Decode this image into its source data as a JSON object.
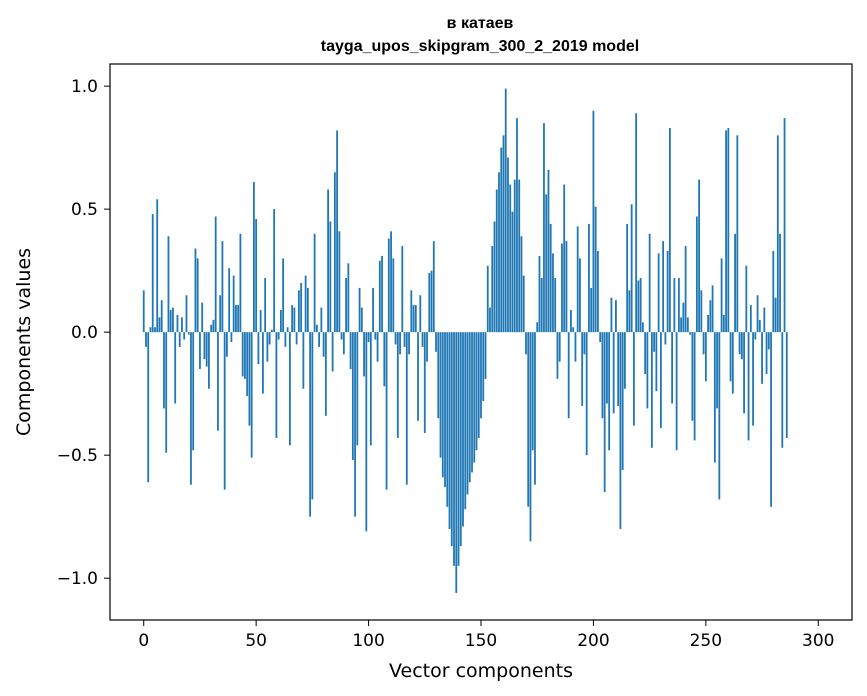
{
  "chart_data": {
    "type": "bar",
    "title_line1": "в катаев",
    "title_line2": "tayga_upos_skipgram_300_2_2019 model",
    "xlabel": "Vector components",
    "ylabel": "Components values",
    "xlim": [
      -15,
      315
    ],
    "ylim": [
      -1.17,
      1.09
    ],
    "xticks": [
      0,
      50,
      100,
      150,
      200,
      250,
      300
    ],
    "xtick_labels": [
      "0",
      "50",
      "100",
      "150",
      "200",
      "250",
      "300"
    ],
    "yticks": [
      -1.0,
      -0.5,
      0.0,
      0.5,
      1.0
    ],
    "ytick_labels": [
      "−1.0",
      "−0.5",
      "0.0",
      "0.5",
      "1.0"
    ],
    "bar_color": "#1f77b4",
    "values": [
      0.17,
      -0.06,
      -0.61,
      0.02,
      0.48,
      0.02,
      0.54,
      0.06,
      0.13,
      -0.31,
      -0.49,
      0.39,
      0.09,
      0.1,
      -0.29,
      0.07,
      -0.06,
      0.06,
      -0.03,
      0.15,
      -0.01,
      -0.62,
      -0.48,
      0.34,
      0.3,
      -0.15,
      0.12,
      -0.11,
      -0.14,
      -0.23,
      0.03,
      0.05,
      0.47,
      -0.4,
      0.15,
      0.37,
      -0.64,
      -0.1,
      0.26,
      -0.04,
      0.23,
      0.11,
      0.11,
      0.4,
      -0.18,
      -0.19,
      -0.26,
      -0.38,
      -0.51,
      0.61,
      0.46,
      -0.13,
      0.09,
      -0.25,
      0.22,
      -0.12,
      -0.05,
      0.01,
      0.5,
      -0.43,
      -0.03,
      0.09,
      0.3,
      -0.06,
      0.02,
      -0.46,
      0.11,
      0.1,
      -0.05,
      0.17,
      0.2,
      -0.23,
      0.23,
      0.18,
      -0.75,
      -0.68,
      0.4,
      0.03,
      -0.06,
      0.1,
      -0.1,
      -0.34,
      0.58,
      0.45,
      -0.16,
      0.65,
      0.82,
      0.41,
      -0.03,
      -0.09,
      0.22,
      0.28,
      -0.15,
      -0.52,
      -0.75,
      -0.46,
      0.18,
      0.1,
      -0.18,
      -0.81,
      -0.04,
      -0.46,
      0.18,
      -0.03,
      -0.12,
      0.29,
      0.31,
      -0.22,
      -0.64,
      0.38,
      0.41,
      0.3,
      -0.05,
      -0.43,
      -0.09,
      0.35,
      -0.06,
      -0.62,
      -0.09,
      0.17,
      0.11,
      0.11,
      -0.36,
      0.15,
      -0.06,
      -0.41,
      -0.12,
      0.24,
      0.25,
      0.37,
      -0.08,
      -0.35,
      -0.51,
      -0.59,
      -0.63,
      -0.71,
      -0.8,
      -0.87,
      -0.95,
      -1.06,
      -0.95,
      -0.87,
      -0.79,
      -0.72,
      -0.66,
      -0.61,
      -0.57,
      -0.53,
      -0.48,
      -0.43,
      -0.35,
      -0.28,
      -0.19,
      0.27,
      0.1,
      0.35,
      0.45,
      0.58,
      0.65,
      0.75,
      0.8,
      0.99,
      0.71,
      0.6,
      0.49,
      0.62,
      0.87,
      0.62,
      0.39,
      0.23,
      -0.09,
      -0.71,
      -0.85,
      -0.48,
      -0.62,
      0.04,
      0.31,
      0.22,
      0.85,
      0.56,
      0.66,
      0.44,
      0.32,
      0.22,
      -0.19,
      -0.12,
      0.36,
      0.6,
      0.37,
      -0.35,
      0.09,
      0.02,
      -0.12,
      0.43,
      0.3,
      -0.3,
      -0.09,
      -0.5,
      0.44,
      0.18,
      0.9,
      0.51,
      0.33,
      -0.04,
      -0.35,
      -0.65,
      -0.29,
      -0.48,
      0.14,
      -0.33,
      0.13,
      -0.3,
      -0.8,
      -0.56,
      -0.23,
      0.44,
      0.17,
      0.52,
      -0.38,
      0.89,
      0.21,
      0.22,
      0.04,
      -0.17,
      -0.31,
      0.4,
      -0.47,
      -0.08,
      -0.24,
      0.32,
      -0.39,
      0.37,
      -0.05,
      0.33,
      0.83,
      -0.29,
      0.22,
      -0.48,
      0.22,
      0.06,
      0.12,
      0.35,
      0.06,
      -0.01,
      -0.36,
      -0.44,
      0.47,
      0.62,
      0.17,
      -0.09,
      -0.2,
      0.07,
      0.13,
      0.19,
      -0.53,
      -0.31,
      -0.68,
      0.3,
      0.07,
      0.82,
      0.83,
      -0.2,
      -0.25,
      0.4,
      0.8,
      -0.09,
      -0.11,
      -0.33,
      0.27,
      -0.44,
      0.11,
      -0.38,
      -0.03,
      0.15,
      0.05,
      -0.21,
      0.1,
      -0.17,
      -0.07,
      -0.71,
      0.33,
      0.14,
      0.8,
      0.4,
      -0.47,
      0.87,
      -0.43
    ]
  }
}
